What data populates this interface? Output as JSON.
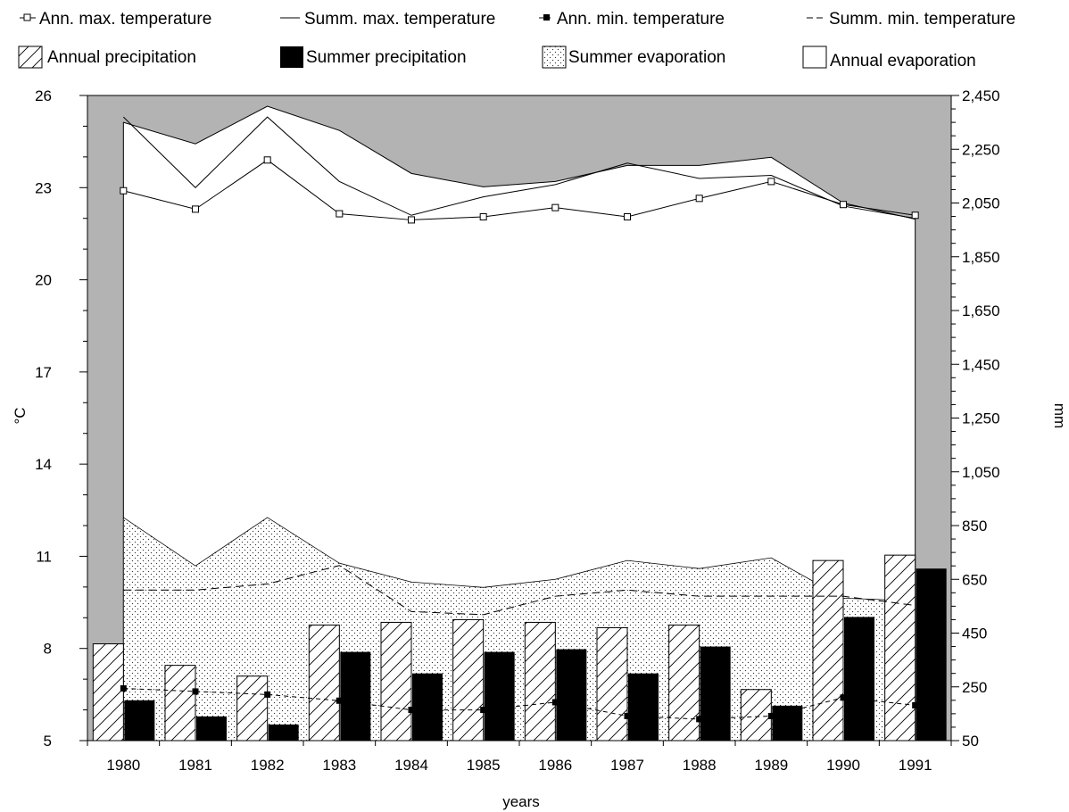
{
  "chart_data": {
    "type": "bar",
    "categories": [
      "1980",
      "1981",
      "1982",
      "1983",
      "1984",
      "1985",
      "1986",
      "1987",
      "1988",
      "1989",
      "1990",
      "1991"
    ],
    "xlabel": "years",
    "ylabel_left": "°C",
    "ylabel_right": "mm",
    "y_left": {
      "range": [
        5,
        26
      ],
      "ticks": [
        "5",
        "8",
        "11",
        "14",
        "17",
        "20",
        "23",
        "26"
      ]
    },
    "y_right": {
      "range": [
        50,
        2450
      ],
      "ticks": [
        "50",
        "250",
        "450",
        "650",
        "850",
        "1,050",
        "1,250",
        "1,450",
        "1,650",
        "1,850",
        "2,050",
        "2,250",
        "2,450"
      ]
    },
    "legend": [
      {
        "label": "Ann. max. temperature",
        "marker": "line-open-square"
      },
      {
        "label": "Summ. max. temperature",
        "marker": "line"
      },
      {
        "label": "Ann. min. temperature",
        "marker": "dashed-filled-square"
      },
      {
        "label": "Summ. min. temperature",
        "marker": "dashed"
      },
      {
        "label": "Annual precipitation",
        "marker": "hatched-box"
      },
      {
        "label": "Summer precipitation",
        "marker": "black-box"
      },
      {
        "label": "Summer evaporation",
        "marker": "dotted-box"
      },
      {
        "label": "Annual evaporation",
        "marker": "white-box"
      }
    ],
    "series": [
      {
        "name": "Annual evaporation",
        "axis": "right",
        "kind": "area",
        "values": [
          2350,
          2270,
          2410,
          2320,
          2160,
          2110,
          2130,
          2190,
          2190,
          2220,
          2050,
          1990
        ]
      },
      {
        "name": "Summer evaporation",
        "axis": "right",
        "kind": "area",
        "values": [
          880,
          700,
          880,
          710,
          640,
          620,
          650,
          720,
          690,
          730,
          580,
          570
        ]
      },
      {
        "name": "Summ. max. temperature",
        "axis": "left",
        "kind": "line",
        "values": [
          25.3,
          23.0,
          25.3,
          23.2,
          22.1,
          22.7,
          23.1,
          23.8,
          23.3,
          23.4,
          22.4,
          22.0
        ]
      },
      {
        "name": "Ann. max. temperature",
        "axis": "left",
        "kind": "line",
        "values": [
          22.9,
          22.3,
          23.9,
          22.15,
          21.95,
          22.05,
          22.35,
          22.05,
          22.65,
          23.2,
          22.45,
          22.1
        ]
      },
      {
        "name": "Summ. min. temperature",
        "axis": "left",
        "kind": "line",
        "values": [
          9.9,
          9.9,
          10.1,
          10.7,
          9.2,
          9.1,
          9.7,
          9.9,
          9.7,
          9.7,
          9.7,
          9.4
        ]
      },
      {
        "name": "Ann. min. temperature",
        "axis": "left",
        "kind": "line",
        "values": [
          6.7,
          6.6,
          6.5,
          6.3,
          6.0,
          6.0,
          6.25,
          5.8,
          5.7,
          5.8,
          6.4,
          6.15
        ]
      },
      {
        "name": "Annual precipitation",
        "axis": "right",
        "kind": "bar",
        "values": [
          410,
          330,
          290,
          480,
          490,
          500,
          490,
          470,
          480,
          240,
          720,
          740
        ]
      },
      {
        "name": "Summer precipitation",
        "axis": "right",
        "kind": "bar",
        "values": [
          200,
          140,
          110,
          380,
          300,
          380,
          390,
          300,
          400,
          180,
          510,
          690
        ]
      }
    ]
  }
}
